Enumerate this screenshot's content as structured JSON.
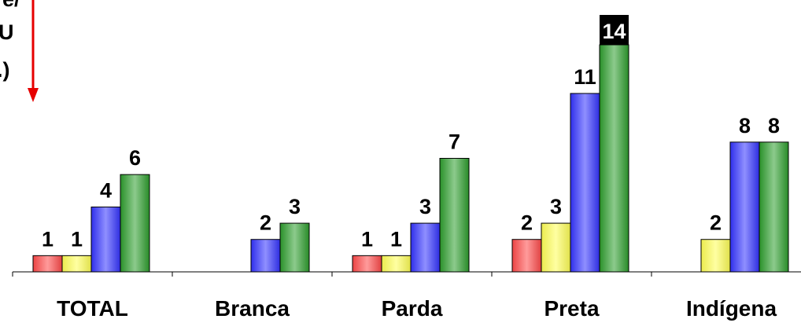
{
  "chart_data": {
    "type": "bar",
    "categories": [
      "TOTAL",
      "Branca",
      "Parda",
      "Preta",
      "Indígena"
    ],
    "series": [
      {
        "color": "#ff4a4a",
        "values": [
          1,
          null,
          1,
          2,
          null
        ]
      },
      {
        "color": "#ffff55",
        "values": [
          1,
          null,
          1,
          3,
          2
        ]
      },
      {
        "color": "#3333ff",
        "values": [
          4,
          2,
          3,
          11,
          8
        ]
      },
      {
        "color": "#2e9e2e",
        "values": [
          6,
          3,
          7,
          14,
          8
        ]
      }
    ],
    "highlighted_label": {
      "category": "Preta",
      "series_index": 3
    },
    "ylim": [
      0,
      14
    ],
    "grid": false,
    "legend": "none"
  },
  "cut_off_labels": [
    "e/",
    "U",
    ".)"
  ],
  "arrow": {
    "color": "#e60000",
    "direction": "down"
  }
}
